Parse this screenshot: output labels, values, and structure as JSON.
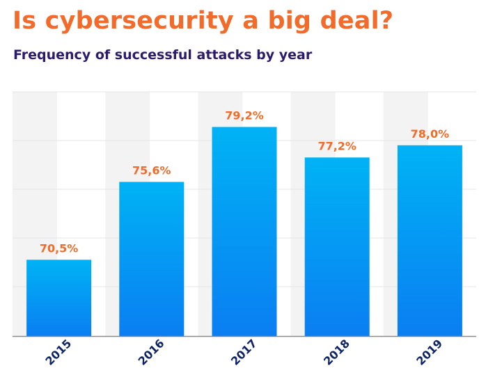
{
  "colors": {
    "title": "#f26b2a",
    "subtitle": "#2c1a6b",
    "value_label": "#f26b2a",
    "tick_label": "#0d2366",
    "bar_top": "#00b3f5",
    "bar_bottom": "#0a7ef2",
    "band": "#f3f3f3",
    "grid": "#e6e6e6",
    "axis": "#8a8a8a"
  },
  "chart_data": {
    "type": "bar",
    "title": "Is cybersecurity a big deal?",
    "subtitle": "Frequency of successful attacks by year",
    "xlabel": "",
    "ylabel": "",
    "categories": [
      "2015",
      "2016",
      "2017",
      "2018",
      "2019"
    ],
    "values": [
      70.5,
      75.6,
      79.2,
      77.2,
      78.0
    ],
    "value_labels": [
      "70,5%",
      "75,6%",
      "79,2%",
      "77,2%",
      "78,0%"
    ],
    "ylim": [
      65.5,
      81.5
    ],
    "grid": true,
    "legend": "none"
  }
}
